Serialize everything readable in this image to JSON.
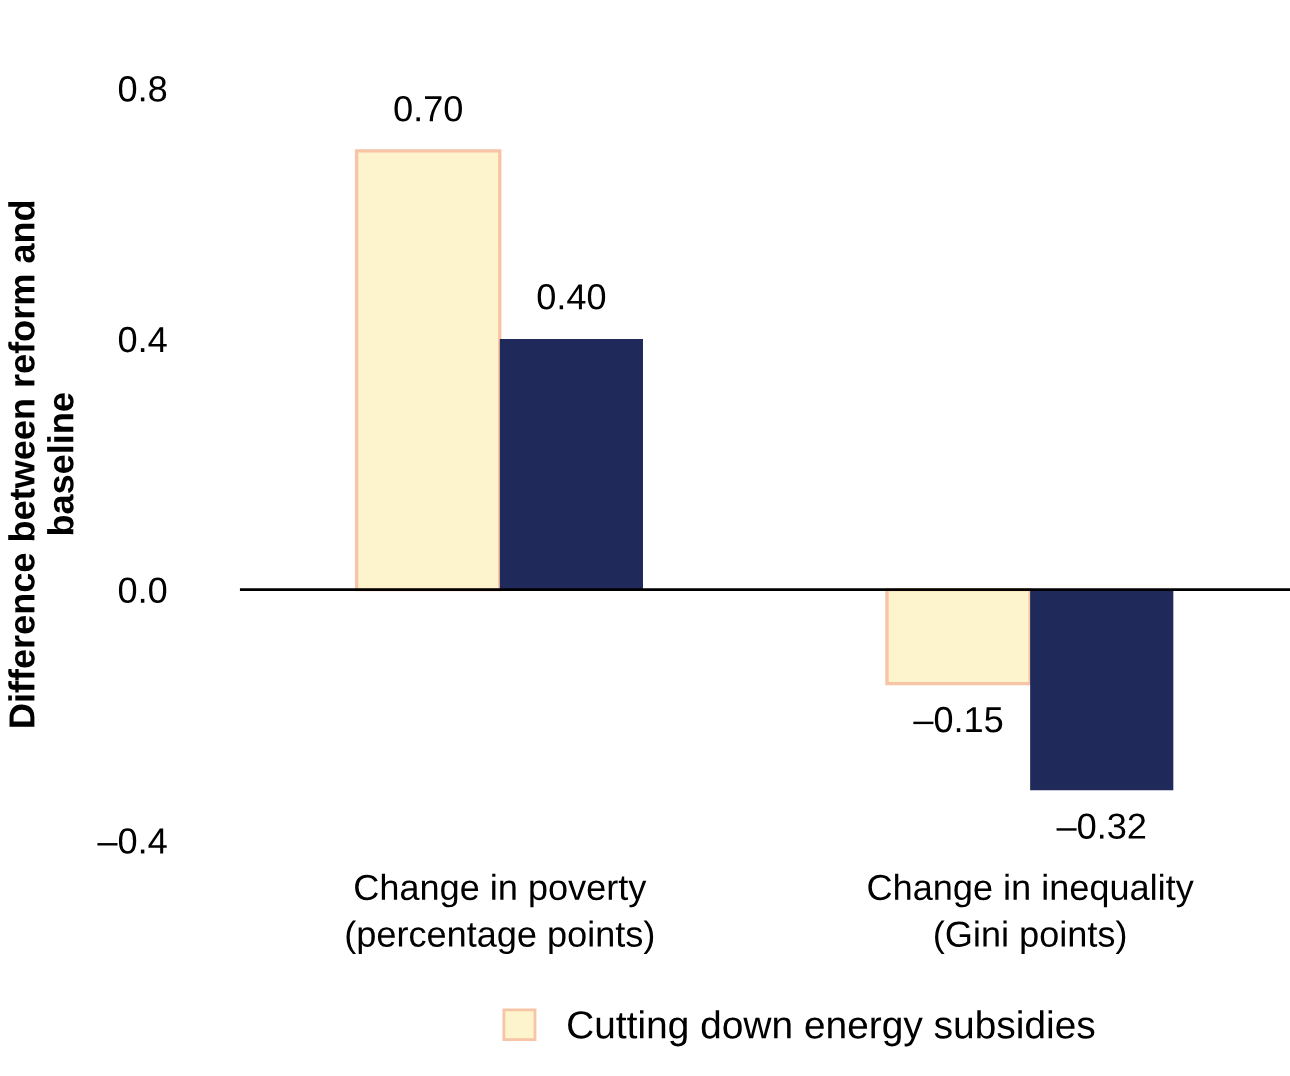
{
  "chart_data": {
    "type": "bar",
    "ylabel": "Difference between reform and\nbaseline",
    "categories": [
      "Change in poverty\n(percentage points)",
      "Change in inequality\n(Gini points)"
    ],
    "series": [
      {
        "name": "Cutting down energy subsidies",
        "color": "#fdf3cc",
        "values": [
          0.7,
          -0.15
        ],
        "value_labels": [
          "0.70",
          "–0.15"
        ]
      },
      {
        "color": "#1f2a5a",
        "values": [
          0.4,
          -0.32
        ],
        "value_labels": [
          "0.40",
          "–0.32"
        ]
      }
    ],
    "ylim": [
      -0.4,
      0.8
    ],
    "yticks": [
      {
        "value": -0.4,
        "label": "–0.4"
      },
      {
        "value": 0.0,
        "label": "0.0"
      },
      {
        "value": 0.4,
        "label": "0.4"
      },
      {
        "value": 0.8,
        "label": "0.8"
      }
    ],
    "ref_lines": [
      {
        "axis": "y",
        "value": 0,
        "color": "#000000"
      }
    ],
    "grid": false,
    "legend": "bottom"
  }
}
